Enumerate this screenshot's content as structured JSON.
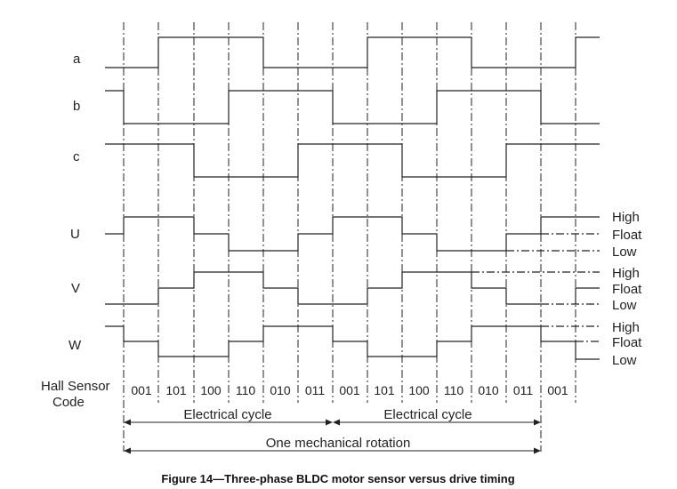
{
  "signals": [
    {
      "name": "a"
    },
    {
      "name": "b"
    },
    {
      "name": "c"
    },
    {
      "name": "U"
    },
    {
      "name": "V"
    },
    {
      "name": "W"
    }
  ],
  "level_labels": [
    "High",
    "Float",
    "Low",
    "High",
    "Float",
    "Low",
    "High",
    "Float",
    "Low"
  ],
  "hall_label_line1": "Hall Sensor",
  "hall_label_line2": "Code",
  "hall_codes": [
    "001",
    "101",
    "100",
    "110",
    "010",
    "011",
    "001",
    "101",
    "100",
    "110",
    "010",
    "011",
    "001"
  ],
  "electrical_cycle_label": "Electrical cycle",
  "electrical_cycle_label_2": "Electrical cycle",
  "mechanical_label": "One mechanical rotation",
  "caption": "Figure 14—Three-phase BLDC motor sensor versus drive timing"
}
